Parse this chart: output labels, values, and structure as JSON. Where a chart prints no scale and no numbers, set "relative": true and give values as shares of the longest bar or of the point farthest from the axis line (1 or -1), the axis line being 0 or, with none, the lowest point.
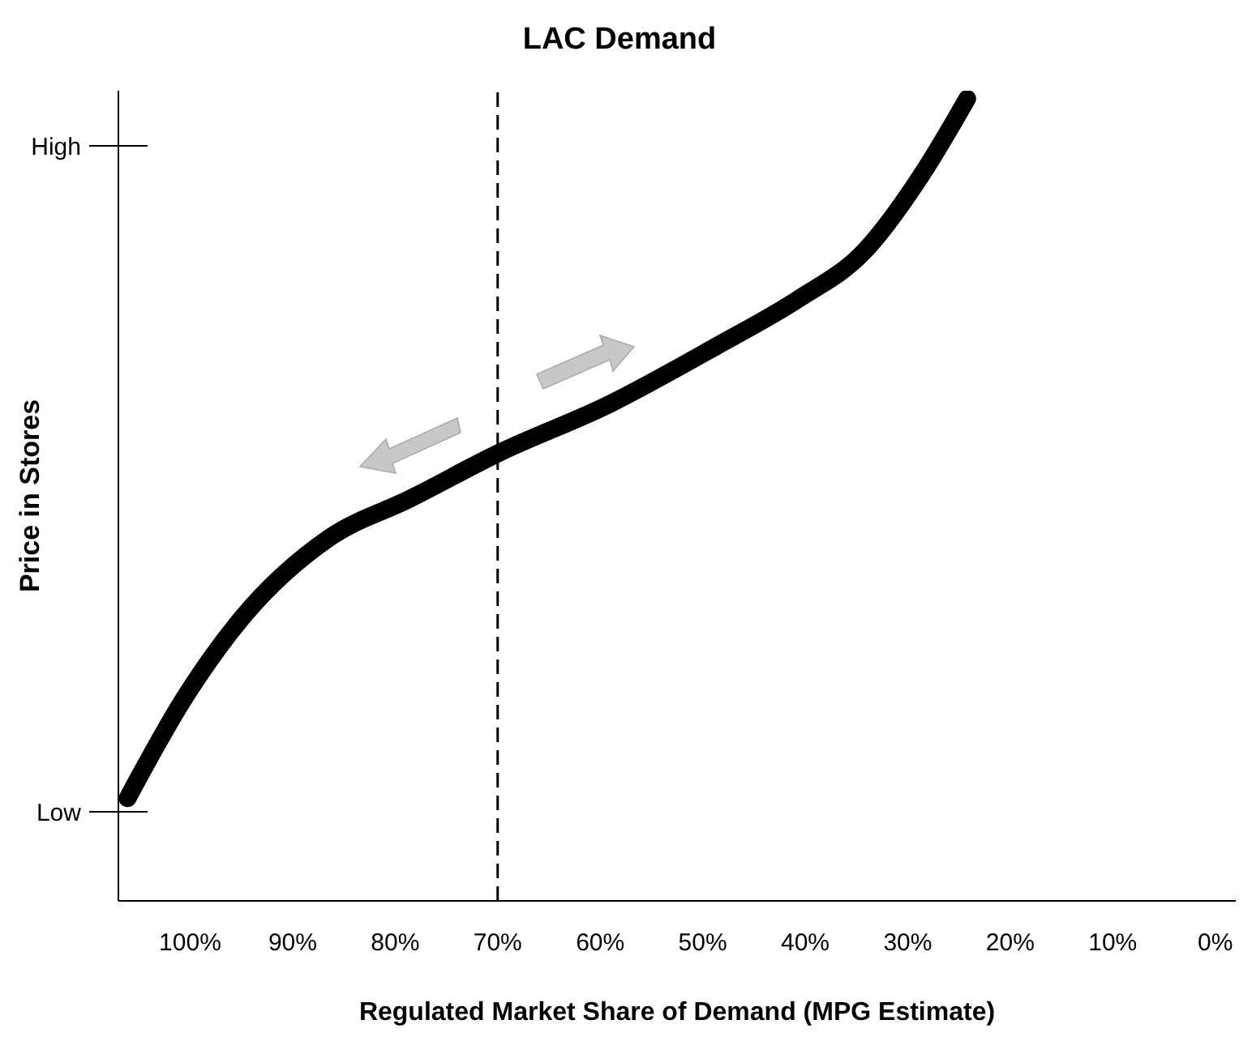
{
  "chart_data": {
    "type": "line",
    "title": "LAC Demand",
    "xlabel": "Regulated Market Share of Demand (MPG Estimate)",
    "ylabel": "Price in Stores",
    "relative": true,
    "annotations": [
      "High",
      "Low"
    ],
    "x": [
      106.1,
      100.6,
      95,
      86.5,
      78.6,
      69.8,
      59.3,
      48.6,
      40.7,
      34.3,
      28.5,
      24.2
    ],
    "series": [
      {
        "color": "#000000",
        "values": [
          0.128,
          0.252,
          0.352,
          0.452,
          0.501,
          0.559,
          0.618,
          0.692,
          0.75,
          0.809,
          0.908,
          1
        ]
      }
    ],
    "xlim": [
      107,
      -2
    ],
    "xticks": [
      {
        "value": 100,
        "label": "100%"
      },
      {
        "value": 90,
        "label": "90%"
      },
      {
        "value": 80,
        "label": "80%"
      },
      {
        "value": 70,
        "label": "70%"
      },
      {
        "value": 60,
        "label": "60%"
      },
      {
        "value": 50,
        "label": "50%"
      },
      {
        "value": 40,
        "label": "40%"
      },
      {
        "value": 30,
        "label": "30%"
      },
      {
        "value": 20,
        "label": "20%"
      },
      {
        "value": 10,
        "label": "10%"
      },
      {
        "value": 0,
        "label": "0%"
      }
    ],
    "ref_lines": [
      {
        "axis": "x",
        "value": 70,
        "color": "#000000",
        "line_style": "dashed"
      }
    ],
    "marker": "none",
    "line_style": "solid"
  }
}
